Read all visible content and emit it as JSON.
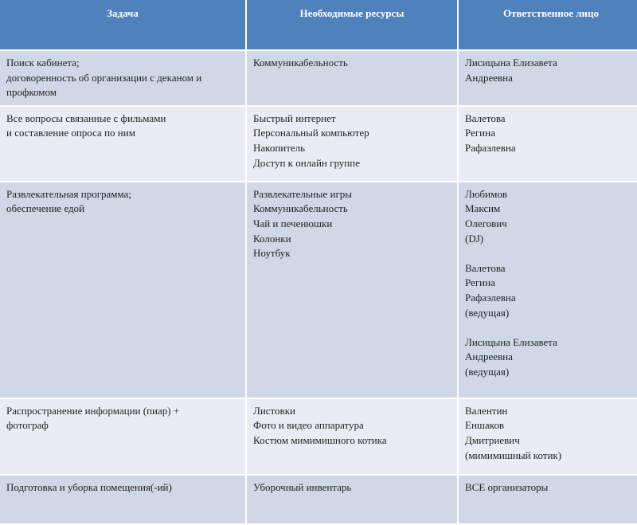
{
  "header": [
    "Задача",
    "Необходимые ресурсы",
    "Ответственное лицо"
  ],
  "rows": [
    {
      "task": [
        "Поиск кабинета;",
        "договоренность об организации с деканом и",
        "профкомом"
      ],
      "resources": [
        "Коммуникабельность"
      ],
      "responsible": [
        "Лисицына Елизавета",
        "Андреевна"
      ]
    },
    {
      "task": [
        "Все вопросы связанные с фильмами",
        "и составление опроса по ним"
      ],
      "resources": [
        "Быстрый интернет",
        "Персональный компьютер",
        "Накопитель",
        "Доступ к онлайн группе"
      ],
      "responsible": [
        "Валетова",
        "Регина",
        "Рафаэлевна"
      ]
    },
    {
      "task": [
        "Развлекательная программа;",
        "обеспечение едой"
      ],
      "resources": [
        "Развлекательные игры",
        "Коммуникабельность",
        "Чай и печенюшки",
        "Колонки",
        "Ноутбук"
      ],
      "responsible": [
        "Любимов",
        "Максим",
        "Олегович",
        "(DJ)",
        "",
        "Валетова",
        "Регина",
        "Рафаэлевна",
        "(ведущая)",
        "",
        "Лисицына Елизавета",
        "Андреевна",
        "(ведущая)"
      ]
    },
    {
      "task": [
        "Распространение информации (пиар) +",
        "фотограф"
      ],
      "resources": [
        "Листовки",
        "Фото и видео аппаратура",
        "Костюм мимимишного котика"
      ],
      "responsible": [
        "Валентин",
        "Еншаков",
        "Дмитриевич",
        "(мимимишный котик)"
      ]
    },
    {
      "task": [
        "Подготовка и уборка помещения(-ий)"
      ],
      "resources": [
        "Уборочный инвентарь"
      ],
      "responsible": [
        "ВСЕ организаторы"
      ]
    }
  ],
  "colors": {
    "header": "#4f81bd",
    "row_odd": "#d0d7e6",
    "row_even": "#e9ecf4"
  }
}
